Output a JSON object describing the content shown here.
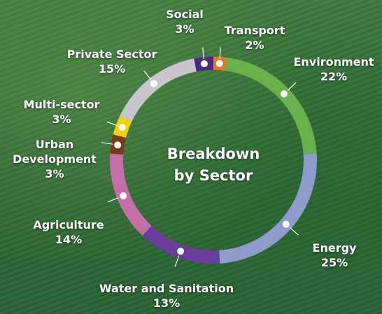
{
  "chart_data": {
    "type": "donut",
    "title": "Breakdown by Sector",
    "categories": [
      "Transport",
      "Environment",
      "Energy",
      "Water and Sanitation",
      "Agriculture",
      "Urban Development",
      "Multi-sector",
      "Private Sector",
      "Social"
    ],
    "values": [
      2,
      22,
      25,
      13,
      14,
      3,
      3,
      15,
      3
    ],
    "value_labels": [
      "2%",
      "22%",
      "25%",
      "13%",
      "14%",
      "3%",
      "3%",
      "15%",
      "3%"
    ],
    "colors": [
      "#e87722",
      "#6ab04c",
      "#8e9ccc",
      "#6a3d9a",
      "#c46fa6",
      "#7a3b1a",
      "#f2d10d",
      "#c9c5cc",
      "#4b2a84"
    ]
  }
}
